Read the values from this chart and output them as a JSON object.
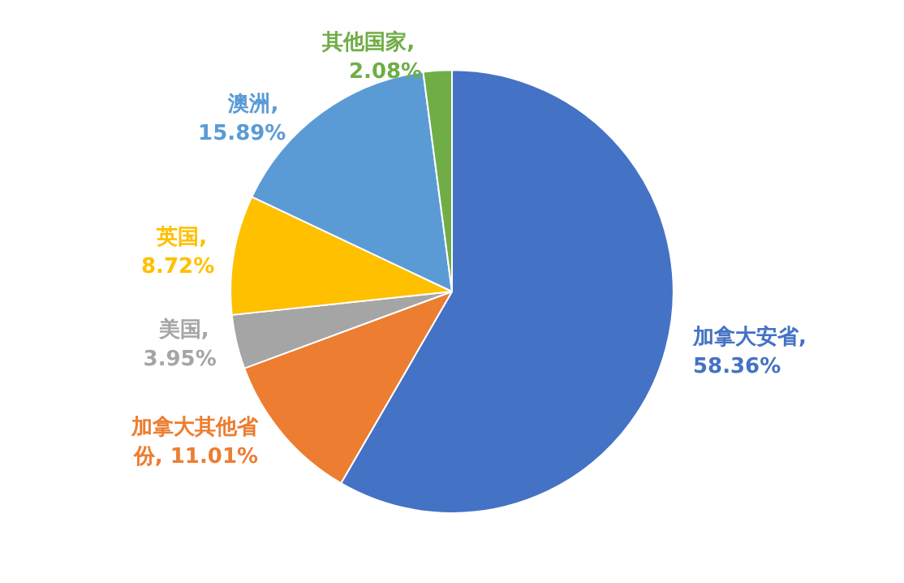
{
  "chart_data": {
    "type": "pie",
    "categories": [
      "加拿大安省",
      "加拿大其他省份",
      "美国",
      "英国",
      "澳洲",
      "其他国家"
    ],
    "values": [
      58.36,
      11.01,
      3.95,
      8.72,
      15.89,
      2.08
    ],
    "value_labels": [
      ", 58.36%",
      ", 11.01%",
      ", 3.95%",
      ", 8.72%",
      ", 15.89%",
      ", 2.08%"
    ],
    "colors": [
      "#4472c4",
      "#ed7d31",
      "#a5a5a5",
      "#ffc000",
      "#5b9bd5",
      "#70ad47"
    ],
    "legend": false
  }
}
